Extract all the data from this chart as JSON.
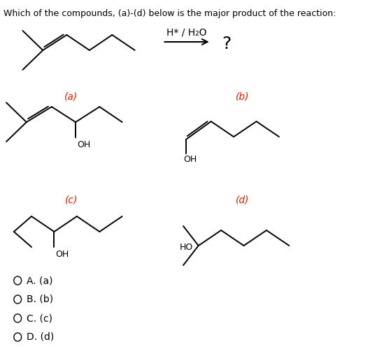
{
  "title": "Which of the compounds, (a)-(d) below is the major product of the reaction:",
  "reaction_label_top": "H* / H₂O",
  "question_mark": "?",
  "label_color": "#cc2200",
  "bg_color": "#ffffff",
  "text_color": "#000000",
  "options": [
    "A. (a)",
    "B. (b)",
    "C. (c)",
    "D. (d)"
  ],
  "title_fontsize": 9.0,
  "label_fontsize": 10,
  "option_fontsize": 10,
  "bond_lw": 1.4
}
